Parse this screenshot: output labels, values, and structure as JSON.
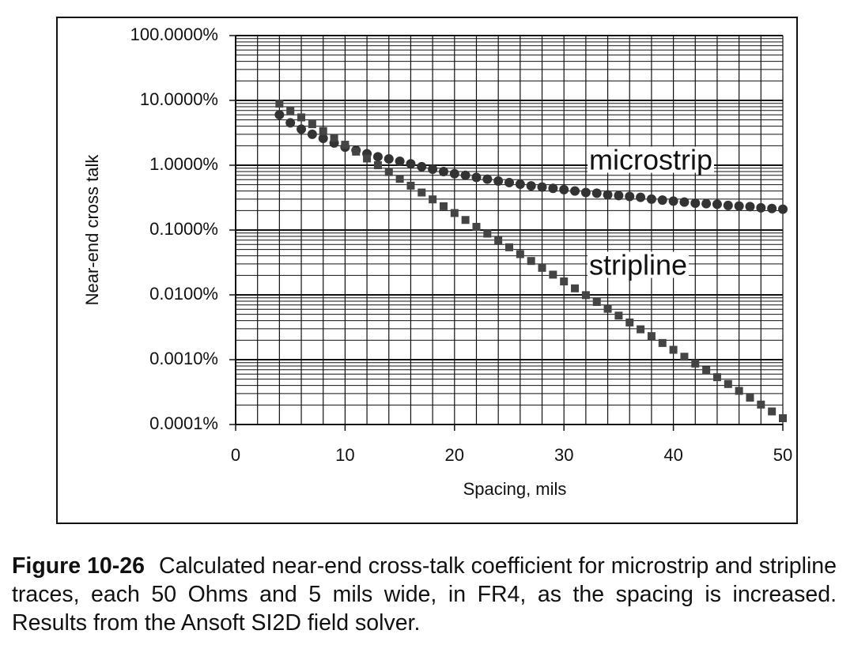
{
  "chart_data": {
    "type": "scatter",
    "xlabel": "Spacing, mils",
    "ylabel": "Near-end cross talk",
    "log_y": true,
    "grid": true,
    "minor_grid": true,
    "xlim": [
      0,
      50
    ],
    "xticks": [
      0,
      10,
      20,
      30,
      40,
      50
    ],
    "xgrid": [
      0,
      2,
      4,
      6,
      8,
      10,
      12,
      14,
      16,
      18,
      20,
      22,
      24,
      26,
      28,
      30,
      32,
      34,
      36,
      38,
      40,
      42,
      44,
      46,
      48,
      50
    ],
    "ylim": [
      0.0001,
      100
    ],
    "yticks": [
      {
        "value": 100,
        "label": "100.0000%"
      },
      {
        "value": 10,
        "label": "10.0000%"
      },
      {
        "value": 1,
        "label": "1.0000%"
      },
      {
        "value": 0.1,
        "label": "0.1000%"
      },
      {
        "value": 0.01,
        "label": "0.0100%"
      },
      {
        "value": 0.001,
        "label": "0.0010%"
      },
      {
        "value": 0.0001,
        "label": "0.0001%"
      }
    ],
    "x": [
      4,
      5,
      6,
      7,
      8,
      9,
      10,
      11,
      12,
      13,
      14,
      15,
      16,
      17,
      18,
      19,
      20,
      21,
      22,
      23,
      24,
      25,
      26,
      27,
      28,
      29,
      30,
      31,
      32,
      33,
      34,
      35,
      36,
      37,
      38,
      39,
      40,
      41,
      42,
      43,
      44,
      45,
      46,
      47,
      48,
      49,
      50
    ],
    "series": [
      {
        "name": "microstrip",
        "marker": "circle",
        "color": "#333333",
        "values": [
          6.0,
          4.5,
          3.6,
          3.0,
          2.6,
          2.2,
          1.9,
          1.7,
          1.5,
          1.35,
          1.25,
          1.15,
          1.05,
          0.95,
          0.87,
          0.8,
          0.74,
          0.7,
          0.65,
          0.61,
          0.57,
          0.54,
          0.51,
          0.48,
          0.46,
          0.44,
          0.42,
          0.4,
          0.38,
          0.37,
          0.35,
          0.34,
          0.33,
          0.32,
          0.3,
          0.29,
          0.28,
          0.27,
          0.26,
          0.255,
          0.25,
          0.24,
          0.235,
          0.23,
          0.22,
          0.215,
          0.21
        ]
      },
      {
        "name": "stripline",
        "marker": "square",
        "color": "#444444",
        "values": [
          8.9,
          6.98,
          5.47,
          4.29,
          3.37,
          2.64,
          2.07,
          1.62,
          1.27,
          1.0,
          0.785,
          0.616,
          0.483,
          0.379,
          0.297,
          0.233,
          0.183,
          0.143,
          0.112,
          0.0881,
          0.0691,
          0.0542,
          0.0425,
          0.0333,
          0.0261,
          0.0205,
          0.0161,
          0.0126,
          0.0099,
          0.00777,
          0.00609,
          0.00478,
          0.00375,
          0.00294,
          0.00231,
          0.00181,
          0.00142,
          0.00111,
          0.000872,
          0.000684,
          0.000537,
          0.000421,
          0.00033,
          0.000259,
          0.000203,
          0.000159,
          0.000125
        ]
      }
    ]
  },
  "caption": {
    "label": "Figure 10-26",
    "text": "Calculated near-end cross-talk coefficient for microstrip and stripline traces, each 50 Ohms and 5 mils wide, in FR4, as the spacing is increased. Results from the Ansoft SI2D field solver."
  }
}
